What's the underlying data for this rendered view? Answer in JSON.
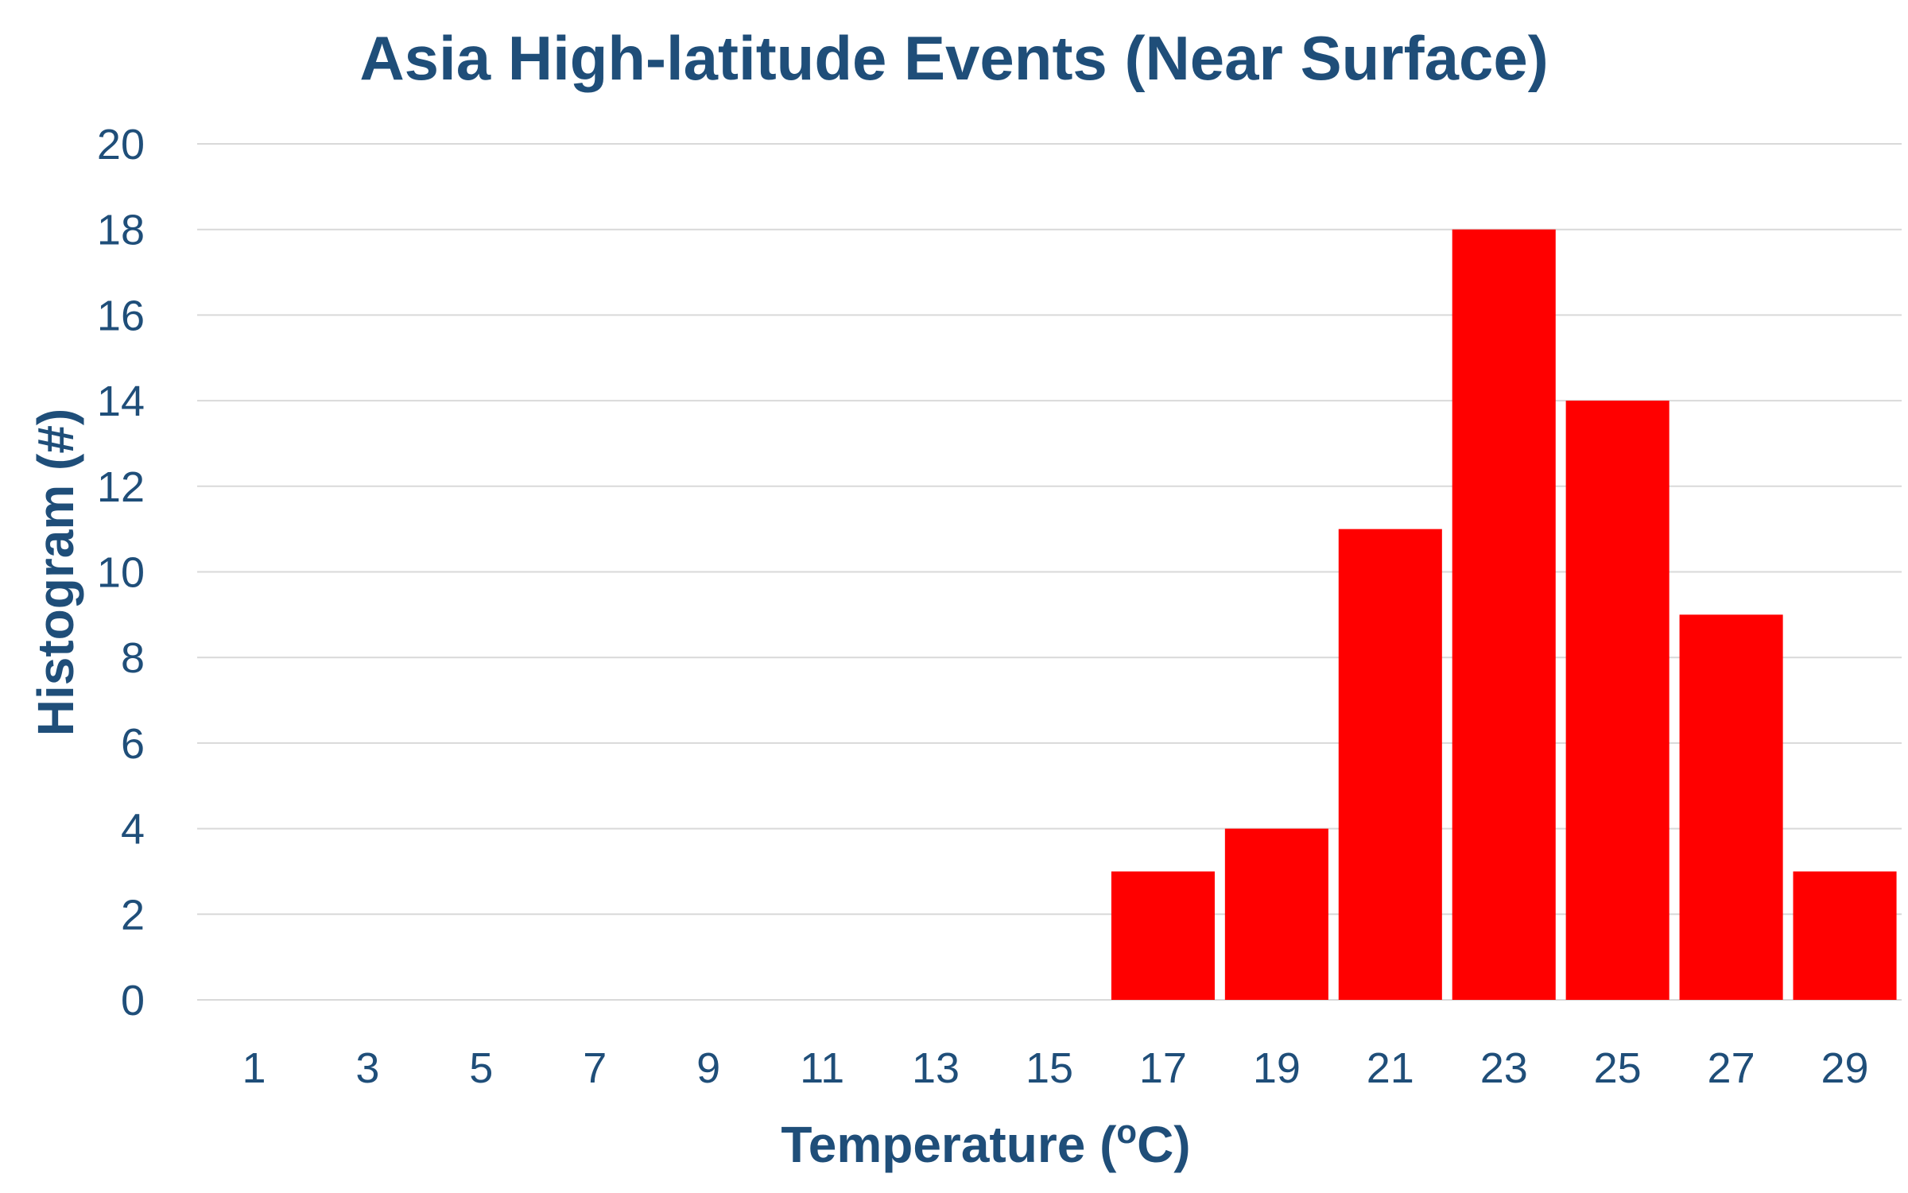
{
  "chart_data": {
    "type": "bar",
    "title": "Asia High-latitude Events (Near Surface)",
    "xlabel": "Temperature (",
    "xlabel_superscript": "o",
    "xlabel_suffix": "C)",
    "ylabel": "Histogram (#)",
    "categories": [
      "1",
      "3",
      "5",
      "7",
      "9",
      "11",
      "13",
      "15",
      "17",
      "19",
      "21",
      "23",
      "25",
      "27",
      "29"
    ],
    "values": [
      0,
      0,
      0,
      0,
      0,
      0,
      0,
      0,
      3,
      4,
      11,
      18,
      14,
      9,
      3
    ],
    "ylim": [
      0,
      20
    ],
    "yticks": [
      0,
      2,
      4,
      6,
      8,
      10,
      12,
      14,
      16,
      18,
      20
    ],
    "grid": true,
    "bar_color": "#FF0000",
    "text_color": "#1F4E79"
  }
}
